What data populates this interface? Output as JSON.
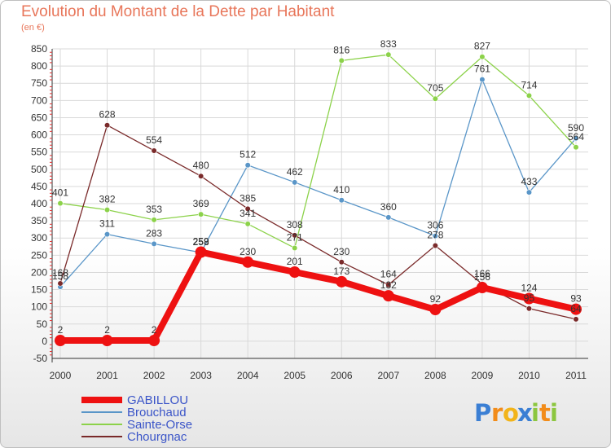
{
  "chart_data": {
    "type": "line",
    "title": "Evolution du Montant de la Dette par Habitant",
    "subtitle": "(en €)",
    "xlabel": "",
    "ylabel": "",
    "categories": [
      "2000",
      "2001",
      "2002",
      "2003",
      "2004",
      "2005",
      "2006",
      "2007",
      "2008",
      "2009",
      "2010",
      "2011"
    ],
    "ylim": [
      -50,
      850
    ],
    "yticks": [
      -50,
      0,
      50,
      100,
      150,
      200,
      250,
      300,
      350,
      400,
      450,
      500,
      550,
      600,
      650,
      700,
      750,
      800,
      850
    ],
    "grid": true,
    "legend_position": "bottom-left",
    "series": [
      {
        "name": "GABILLOU",
        "color": "#ee1111",
        "emphasis": true,
        "values": [
          2,
          2,
          2,
          259,
          230,
          201,
          173,
          132,
          92,
          156,
          124,
          93
        ],
        "labels": [
          "2",
          "2",
          "2",
          "259",
          "230",
          "201",
          "173",
          "132",
          "92",
          "156",
          "124",
          "93"
        ]
      },
      {
        "name": "Brouchaud",
        "color": "#5a96c8",
        "values": [
          158,
          311,
          283,
          258,
          512,
          462,
          410,
          360,
          306,
          761,
          433,
          590
        ],
        "labels": [
          "158",
          "311",
          "283",
          "258",
          "512",
          "462",
          "410",
          "360",
          "306",
          "761",
          "433",
          "590"
        ]
      },
      {
        "name": "Sainte-Orse",
        "color": "#8cd24a",
        "values": [
          401,
          382,
          353,
          369,
          341,
          271,
          816,
          833,
          705,
          827,
          714,
          564
        ],
        "labels": [
          "401",
          "382",
          "353",
          "369",
          "341",
          "271",
          "816",
          "833",
          "705",
          "827",
          "714",
          "564"
        ]
      },
      {
        "name": "Chourgnac",
        "color": "#7a2a2a",
        "values": [
          168,
          628,
          554,
          480,
          385,
          308,
          230,
          164,
          278,
          166,
          95,
          64
        ],
        "labels": [
          "168",
          "628",
          "554",
          "480",
          "385",
          "308",
          "230",
          "164",
          "278",
          "166",
          "95",
          "64"
        ]
      }
    ]
  },
  "logo": {
    "text": "Proxiti",
    "letters": [
      "P",
      "r",
      "o",
      "x",
      "i",
      "t",
      "i"
    ],
    "colors": [
      "#3b7fd4",
      "#f28c1a",
      "#f2b41a",
      "#3b7fd4",
      "#8cc63f",
      "#f28c1a",
      "#8cc63f"
    ]
  }
}
